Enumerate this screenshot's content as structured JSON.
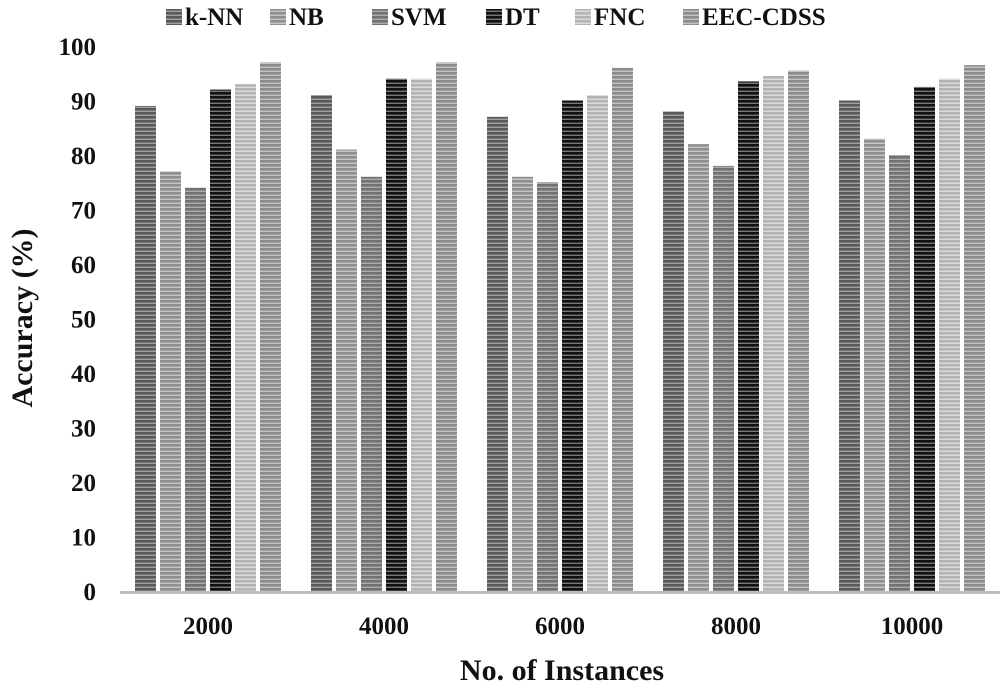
{
  "chart_data": {
    "type": "bar",
    "title": "",
    "xlabel": "No. of Instances",
    "ylabel": "Accuracy (%)",
    "categories": [
      "2000",
      "4000",
      "6000",
      "8000",
      "10000"
    ],
    "ylim": [
      0,
      100
    ],
    "yticks": [
      0,
      10,
      20,
      30,
      40,
      50,
      60,
      70,
      80,
      90,
      100
    ],
    "grid": false,
    "legend_position": "top",
    "series": [
      {
        "name": "k-NN",
        "values": [
          89,
          91,
          87,
          88,
          90
        ],
        "color": "#5a5a5a",
        "stripe": "#a0a0a0"
      },
      {
        "name": "NB",
        "values": [
          77,
          81,
          76,
          82,
          83
        ],
        "color": "#8f8f8f",
        "stripe": "#c6c6c6"
      },
      {
        "name": "SVM",
        "values": [
          74,
          76,
          75,
          78,
          80
        ],
        "color": "#727272",
        "stripe": "#ababab"
      },
      {
        "name": "DT",
        "values": [
          92,
          94,
          90,
          93.5,
          92.5
        ],
        "color": "#111111",
        "stripe": "#777777"
      },
      {
        "name": "FNC",
        "values": [
          93,
          94,
          91,
          94.5,
          94
        ],
        "color": "#b4b4b4",
        "stripe": "#dcdcdc"
      },
      {
        "name": "EEC-CDSS",
        "values": [
          97,
          97,
          96,
          95.5,
          96.5
        ],
        "color": "#8c8c8c",
        "stripe": "#c4c4c4"
      }
    ]
  }
}
